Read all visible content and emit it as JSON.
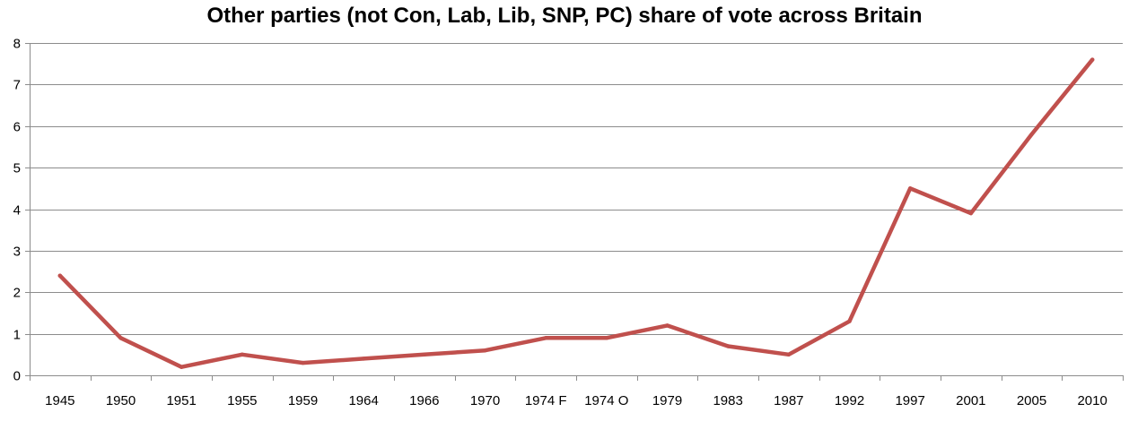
{
  "chart_data": {
    "type": "line",
    "title": "Other parties (not Con, Lab, Lib, SNP, PC) share of vote across Britain",
    "xlabel": "",
    "ylabel": "",
    "ylim": [
      0,
      8
    ],
    "yticks": [
      "0",
      "1",
      "2",
      "3",
      "4",
      "5",
      "6",
      "7",
      "8"
    ],
    "grid": true,
    "categories": [
      "1945",
      "1950",
      "1951",
      "1955",
      "1959",
      "1964",
      "1966",
      "1970",
      "1974 F",
      "1974 O",
      "1979",
      "1983",
      "1987",
      "1992",
      "1997",
      "2001",
      "2005",
      "2010"
    ],
    "series": [
      {
        "name": "Other parties",
        "color": "#c0504d",
        "values": [
          2.4,
          0.9,
          0.2,
          0.5,
          0.3,
          0.4,
          0.5,
          0.6,
          0.9,
          0.9,
          1.2,
          0.7,
          0.5,
          1.3,
          4.5,
          3.9,
          5.8,
          7.6
        ]
      }
    ]
  }
}
